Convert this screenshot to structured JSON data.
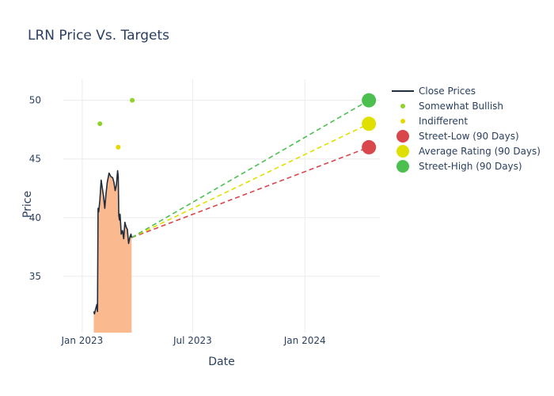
{
  "chart_data": {
    "type": "line",
    "title": "LRN Price Vs. Targets",
    "xlabel": "Date",
    "ylabel": "Price",
    "x_range": [
      "2022-12-01",
      "2024-05-03"
    ],
    "ylim": [
      30.2,
      51.8
    ],
    "x_ticks": [
      {
        "date": "2023-01-01",
        "label": "Jan 2023"
      },
      {
        "date": "2023-07-01",
        "label": "Jul 2023"
      },
      {
        "date": "2024-01-01",
        "label": "Jan 2024"
      }
    ],
    "y_ticks": [
      35,
      40,
      45,
      50
    ],
    "colors": {
      "close": "#1f2d3d",
      "fill": "#fbb98f",
      "somewhat_bullish": "#8fd22c",
      "indifferent": "#e6d800",
      "street_low": "#d9464c",
      "average": "#e0e000",
      "street_high": "#4cc04f"
    },
    "series": [
      {
        "name": "Close Prices",
        "points": [
          [
            "2023-01-20",
            32.0
          ],
          [
            "2023-01-21",
            31.8
          ],
          [
            "2023-01-23",
            32.2
          ],
          [
            "2023-01-25",
            32.6
          ],
          [
            "2023-01-26",
            32.0
          ],
          [
            "2023-01-27",
            40.8
          ],
          [
            "2023-01-28",
            40.5
          ],
          [
            "2023-01-30",
            41.5
          ],
          [
            "2023-02-01",
            43.2
          ],
          [
            "2023-02-03",
            42.5
          ],
          [
            "2023-02-05",
            41.8
          ],
          [
            "2023-02-07",
            40.8
          ],
          [
            "2023-02-09",
            42.0
          ],
          [
            "2023-02-11",
            43.0
          ],
          [
            "2023-02-14",
            43.8
          ],
          [
            "2023-02-17",
            43.5
          ],
          [
            "2023-02-20",
            43.4
          ],
          [
            "2023-02-22",
            43.0
          ],
          [
            "2023-02-24",
            42.3
          ],
          [
            "2023-02-26",
            42.8
          ],
          [
            "2023-02-28",
            44.0
          ],
          [
            "2023-03-01",
            43.5
          ],
          [
            "2023-03-02",
            40.2
          ],
          [
            "2023-03-03",
            39.8
          ],
          [
            "2023-03-04",
            40.3
          ],
          [
            "2023-03-06",
            38.6
          ],
          [
            "2023-03-08",
            38.9
          ],
          [
            "2023-03-10",
            38.2
          ],
          [
            "2023-03-12",
            39.6
          ],
          [
            "2023-03-14",
            39.2
          ],
          [
            "2023-03-16",
            39.0
          ],
          [
            "2023-03-18",
            37.8
          ],
          [
            "2023-03-20",
            38.3
          ],
          [
            "2023-03-22",
            38.6
          ],
          [
            "2023-03-23",
            38.3
          ]
        ]
      },
      {
        "name": "Somewhat Bullish",
        "points": [
          [
            "2023-01-30",
            48
          ],
          [
            "2023-03-24",
            50
          ]
        ]
      },
      {
        "name": "Indifferent",
        "points": [
          [
            "2023-03-01",
            46
          ]
        ]
      },
      {
        "name": "Street-Low (90 Days)",
        "from": [
          "2023-03-23",
          38.3
        ],
        "to": [
          "2024-04-15",
          46
        ]
      },
      {
        "name": "Average Rating (90 Days)",
        "from": [
          "2023-03-23",
          38.3
        ],
        "to": [
          "2024-04-15",
          48
        ]
      },
      {
        "name": "Street-High (90 Days)",
        "from": [
          "2023-03-23",
          38.3
        ],
        "to": [
          "2024-04-15",
          50
        ]
      }
    ],
    "legend_position": "top-right"
  }
}
